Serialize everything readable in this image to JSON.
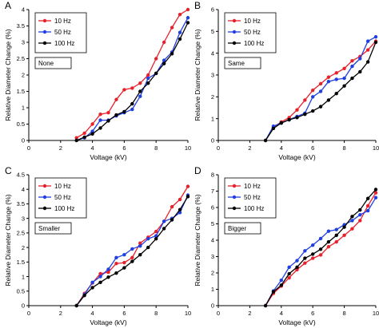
{
  "chart_data": [
    {
      "type": "line",
      "panel_label": "A",
      "box_label": "None",
      "xlabel": "Voltage (kV)",
      "ylabel": "Relative Diameter Change (%)",
      "xlim": [
        0,
        10
      ],
      "ylim": [
        0,
        4
      ],
      "xticks": [
        "0",
        "2",
        "4",
        "6",
        "8",
        "10"
      ],
      "yticks": [
        "0",
        "0.5",
        "1",
        "1.5",
        "2",
        "2.5",
        "3",
        "3.5",
        "4"
      ],
      "legend_position": "top-left",
      "grid": false,
      "series": [
        {
          "name": "10 Hz",
          "color": "#e8202a",
          "x": [
            3,
            3.5,
            4,
            4.5,
            5,
            5.5,
            6,
            6.5,
            7,
            7.5,
            8,
            8.5,
            9,
            9.5,
            10
          ],
          "y": [
            0.08,
            0.22,
            0.5,
            0.8,
            0.85,
            1.25,
            1.55,
            1.6,
            1.75,
            2.0,
            2.5,
            3.0,
            3.45,
            3.85,
            4.0
          ]
        },
        {
          "name": "50 Hz",
          "color": "#1f3fe0",
          "x": [
            3,
            3.5,
            4,
            4.5,
            5,
            5.5,
            6,
            6.5,
            7,
            7.5,
            8,
            8.5,
            9,
            9.5,
            10
          ],
          "y": [
            0.0,
            0.08,
            0.28,
            0.62,
            0.62,
            0.75,
            0.85,
            0.95,
            1.35,
            1.9,
            2.05,
            2.45,
            2.7,
            3.3,
            3.75
          ]
        },
        {
          "name": "100 Hz",
          "color": "#000000",
          "x": [
            3,
            3.5,
            4,
            4.5,
            5,
            5.5,
            6,
            6.5,
            7,
            7.5,
            8,
            8.5,
            9,
            9.5,
            10
          ],
          "y": [
            0.0,
            0.1,
            0.2,
            0.38,
            0.6,
            0.78,
            0.88,
            1.12,
            1.5,
            1.75,
            2.05,
            2.35,
            2.65,
            3.1,
            3.6
          ]
        }
      ]
    },
    {
      "type": "line",
      "panel_label": "B",
      "box_label": "Same",
      "xlabel": "Voltage (kV)",
      "ylabel": "Relative Diameter Change (%)",
      "xlim": [
        0,
        10
      ],
      "ylim": [
        0,
        6
      ],
      "xticks": [
        "0",
        "2",
        "4",
        "6",
        "8",
        "10"
      ],
      "yticks": [
        "0",
        "1",
        "2",
        "3",
        "4",
        "5",
        "6"
      ],
      "legend_position": "top-left",
      "grid": false,
      "series": [
        {
          "name": "10 Hz",
          "color": "#e8202a",
          "x": [
            3,
            3.5,
            4,
            4.5,
            5,
            5.5,
            6,
            6.5,
            7,
            7.5,
            8,
            8.5,
            9,
            9.5,
            10
          ],
          "y": [
            0.0,
            0.6,
            0.85,
            1.05,
            1.4,
            1.85,
            2.3,
            2.6,
            2.9,
            3.1,
            3.3,
            3.65,
            3.85,
            4.15,
            4.55
          ]
        },
        {
          "name": "50 Hz",
          "color": "#1f3fe0",
          "x": [
            3,
            3.5,
            4,
            4.5,
            5,
            5.5,
            6,
            6.5,
            7,
            7.5,
            8,
            8.5,
            9,
            9.5,
            10
          ],
          "y": [
            0.0,
            0.65,
            0.8,
            0.95,
            1.1,
            1.25,
            2.0,
            2.25,
            2.7,
            2.8,
            2.85,
            3.4,
            3.75,
            4.55,
            4.75
          ]
        },
        {
          "name": "100 Hz",
          "color": "#000000",
          "x": [
            3,
            3.5,
            4,
            4.5,
            5,
            5.5,
            6,
            6.5,
            7,
            7.5,
            8,
            8.5,
            9,
            9.5,
            10
          ],
          "y": [
            0.0,
            0.55,
            0.8,
            0.95,
            1.05,
            1.2,
            1.35,
            1.55,
            1.85,
            2.15,
            2.5,
            2.85,
            3.15,
            3.6,
            4.5
          ]
        }
      ]
    },
    {
      "type": "line",
      "panel_label": "C",
      "box_label": "Smaller",
      "xlabel": "Voltage (kV)",
      "ylabel": "Relative Diameter Change (%)",
      "xlim": [
        0,
        10
      ],
      "ylim": [
        0,
        4.5
      ],
      "xticks": [
        "0",
        "2",
        "4",
        "6",
        "8",
        "10"
      ],
      "yticks": [
        "0",
        "0.5",
        "1",
        "1.5",
        "2",
        "2.5",
        "3",
        "3.5",
        "4",
        "4.5"
      ],
      "legend_position": "top-left",
      "grid": false,
      "series": [
        {
          "name": "10 Hz",
          "color": "#e8202a",
          "x": [
            3,
            3.5,
            4,
            4.5,
            5,
            5.5,
            6,
            6.5,
            7,
            7.5,
            8,
            8.5,
            9,
            9.5,
            10
          ],
          "y": [
            0.0,
            0.42,
            0.78,
            1.1,
            1.15,
            1.45,
            1.48,
            1.65,
            2.15,
            2.35,
            2.55,
            2.9,
            3.4,
            3.65,
            4.1
          ]
        },
        {
          "name": "50 Hz",
          "color": "#1f3fe0",
          "x": [
            3,
            3.5,
            4,
            4.5,
            5,
            5.5,
            6,
            6.5,
            7,
            7.5,
            8,
            8.5,
            9,
            9.5,
            10
          ],
          "y": [
            0.0,
            0.38,
            0.8,
            1.0,
            1.25,
            1.65,
            1.75,
            1.95,
            2.05,
            2.3,
            2.4,
            2.9,
            3.0,
            3.2,
            3.8
          ]
        },
        {
          "name": "100 Hz",
          "color": "#000000",
          "x": [
            3,
            3.5,
            4,
            4.5,
            5,
            5.5,
            6,
            6.5,
            7,
            7.5,
            8,
            8.5,
            9,
            9.5,
            10
          ],
          "y": [
            0.0,
            0.35,
            0.62,
            0.8,
            0.98,
            1.12,
            1.3,
            1.52,
            1.75,
            2.0,
            2.3,
            2.65,
            2.95,
            3.3,
            3.75
          ]
        }
      ]
    },
    {
      "type": "line",
      "panel_label": "D",
      "box_label": "Bigger",
      "xlabel": "Voltage (kV)",
      "ylabel": "Relative Diameter Change (%)",
      "xlim": [
        0,
        10
      ],
      "ylim": [
        0,
        8
      ],
      "xticks": [
        "0",
        "2",
        "4",
        "6",
        "8",
        "10"
      ],
      "yticks": [
        "0",
        "1",
        "2",
        "3",
        "4",
        "5",
        "6",
        "7",
        "8"
      ],
      "legend_position": "top-left",
      "grid": false,
      "series": [
        {
          "name": "10 Hz",
          "color": "#e8202a",
          "x": [
            3,
            3.5,
            4,
            4.5,
            5,
            5.5,
            6,
            6.5,
            7,
            7.5,
            8,
            8.5,
            9,
            9.5,
            10
          ],
          "y": [
            0.0,
            0.75,
            1.2,
            1.7,
            2.2,
            2.6,
            2.9,
            3.1,
            3.6,
            3.9,
            4.3,
            4.7,
            5.2,
            6.1,
            6.9
          ]
        },
        {
          "name": "50 Hz",
          "color": "#1f3fe0",
          "x": [
            3,
            3.5,
            4,
            4.5,
            5,
            5.5,
            6,
            6.5,
            7,
            7.5,
            8,
            8.5,
            9,
            9.5,
            10
          ],
          "y": [
            0.0,
            0.9,
            1.55,
            2.35,
            2.75,
            3.35,
            3.7,
            4.1,
            4.55,
            4.65,
            4.95,
            5.2,
            5.55,
            5.8,
            6.6
          ]
        },
        {
          "name": "100 Hz",
          "color": "#000000",
          "x": [
            3,
            3.5,
            4,
            4.5,
            5,
            5.5,
            6,
            6.5,
            7,
            7.5,
            8,
            8.5,
            9,
            9.5,
            10
          ],
          "y": [
            0.0,
            0.85,
            1.25,
            1.95,
            2.35,
            2.9,
            3.15,
            3.45,
            3.9,
            4.3,
            4.8,
            5.45,
            5.85,
            6.55,
            7.1
          ]
        }
      ]
    }
  ]
}
